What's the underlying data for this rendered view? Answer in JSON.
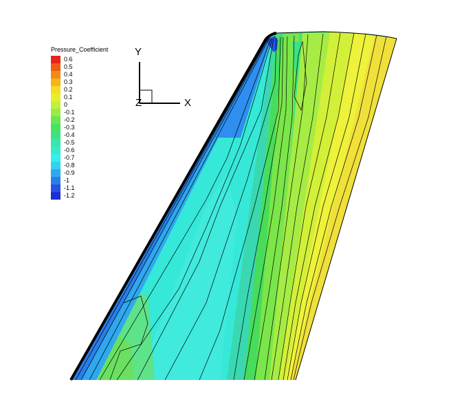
{
  "legend": {
    "title": "Pressure_Coefficient",
    "entries": [
      {
        "label": "0.6",
        "color": "#e8231a"
      },
      {
        "label": "0.5",
        "color": "#ef5a14"
      },
      {
        "label": "0.4",
        "color": "#f38a12"
      },
      {
        "label": "0.3",
        "color": "#f7b416"
      },
      {
        "label": "0.2",
        "color": "#f4dc22"
      },
      {
        "label": "0.1",
        "color": "#e4f02e"
      },
      {
        "label": "0",
        "color": "#c2f03c"
      },
      {
        "label": "-0.1",
        "color": "#98ec44"
      },
      {
        "label": "-0.2",
        "color": "#6ae64e"
      },
      {
        "label": "-0.3",
        "color": "#48e25e"
      },
      {
        "label": "-0.4",
        "color": "#3ce286"
      },
      {
        "label": "-0.5",
        "color": "#3ae6ae"
      },
      {
        "label": "-0.6",
        "color": "#38eacc"
      },
      {
        "label": "-0.7",
        "color": "#36eeea"
      },
      {
        "label": "-0.8",
        "color": "#32d2f2"
      },
      {
        "label": "-0.9",
        "color": "#2ea8ee"
      },
      {
        "label": "-1",
        "color": "#2a7ee8"
      },
      {
        "label": "-1.1",
        "color": "#2454e0"
      },
      {
        "label": "-1.2",
        "color": "#1c2ed6"
      }
    ]
  },
  "axes": {
    "x_label": "X",
    "y_label": "Y",
    "z_label": "Z"
  },
  "colors": {
    "leading_edge": "#000000",
    "contour_line": "#000000",
    "background": "#ffffff"
  }
}
